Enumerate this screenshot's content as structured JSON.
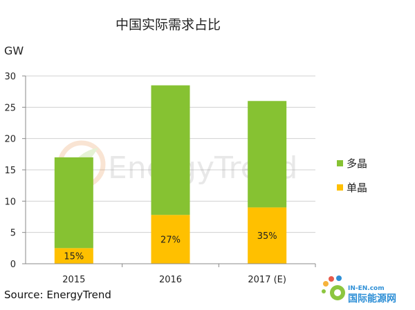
{
  "chart_data": {
    "type": "bar",
    "stacked": true,
    "title": "中国实际需求占比",
    "unit_label": "GW",
    "categories": [
      "2015",
      "2016",
      "2017 (E)"
    ],
    "series": [
      {
        "name": "单晶",
        "color": "#FFC000",
        "values": [
          2.5,
          7.8,
          9.0
        ],
        "labels": [
          "15%",
          "27%",
          "35%"
        ]
      },
      {
        "name": "多晶",
        "color": "#86C232",
        "values": [
          14.5,
          20.7,
          17.0
        ]
      }
    ],
    "ylim": [
      0,
      30
    ],
    "yticks": [
      0,
      5,
      10,
      15,
      20,
      25,
      30
    ],
    "grid": true,
    "legend_position": "right"
  },
  "source": "Source: EnergyTrend",
  "watermark": {
    "text": "EnergyTrend"
  },
  "site_logo": {
    "text": "IN-EN.com",
    "subtext": "国际能源网",
    "color": "#2E8FD6"
  }
}
